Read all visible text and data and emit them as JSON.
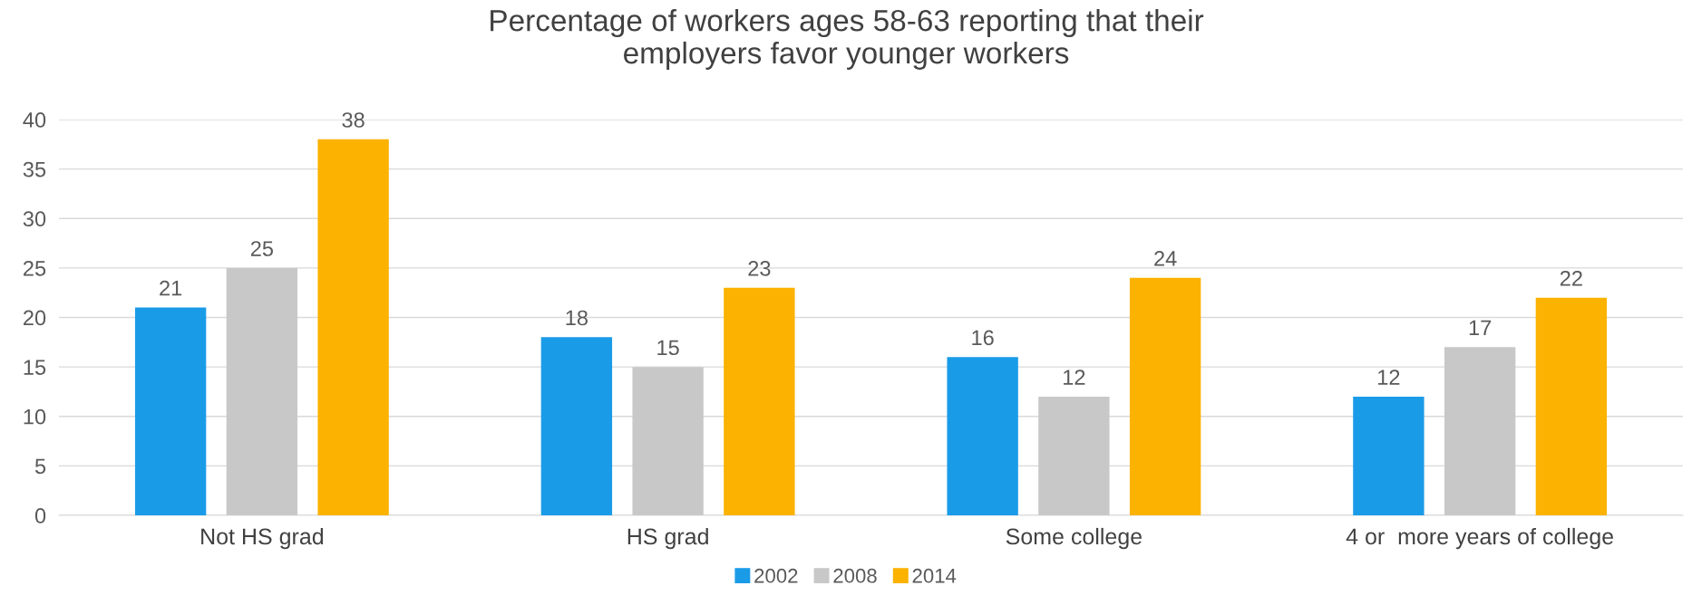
{
  "chart_data": {
    "type": "bar",
    "title": "Percentage of workers ages 58-63 reporting that their\nemployers favor younger workers",
    "categories": [
      "Not HS grad",
      "HS grad",
      "Some college",
      "4 or  more years of college"
    ],
    "series": [
      {
        "name": "2002",
        "color": "#1a9be8",
        "values": [
          21,
          18,
          16,
          12
        ]
      },
      {
        "name": "2008",
        "color": "#c8c8c8",
        "values": [
          25,
          15,
          12,
          17
        ]
      },
      {
        "name": "2014",
        "color": "#fbb200",
        "values": [
          38,
          23,
          24,
          22
        ]
      }
    ],
    "ylim": [
      0,
      40
    ],
    "yticks": [
      0,
      5,
      10,
      15,
      20,
      25,
      30,
      35,
      40
    ],
    "grid": "y",
    "legend": "bottom",
    "data_labels": true
  }
}
